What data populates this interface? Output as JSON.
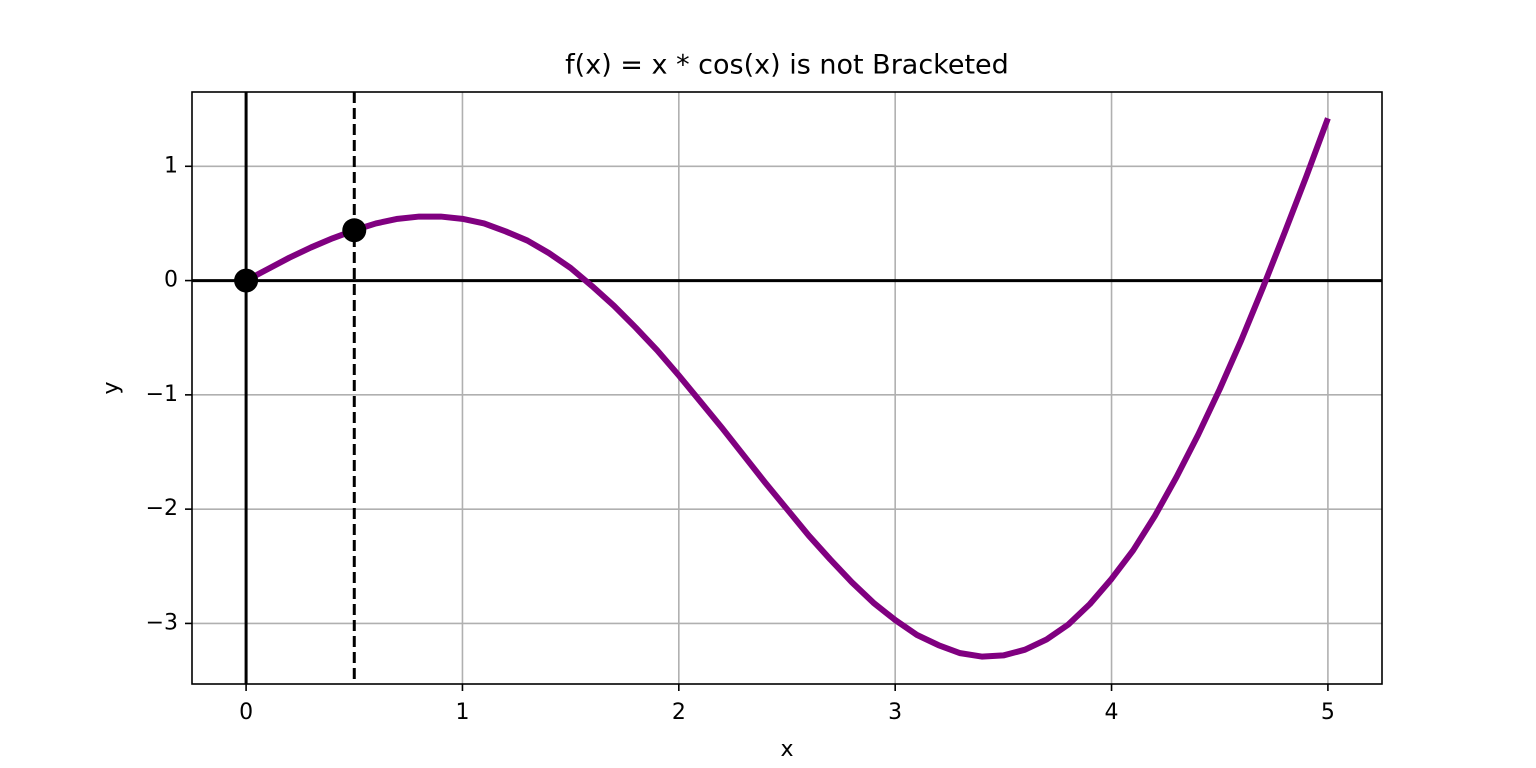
{
  "chart_data": {
    "type": "line",
    "title": "f(x) = x * cos(x) is not Bracketed",
    "xlabel": "x",
    "ylabel": "y",
    "x": [
      0,
      0.1,
      0.2,
      0.3,
      0.4,
      0.5,
      0.6,
      0.7,
      0.8,
      0.9,
      1.0,
      1.1,
      1.2,
      1.3,
      1.4,
      1.5,
      1.6,
      1.7,
      1.8,
      1.9,
      2.0,
      2.1,
      2.2,
      2.3,
      2.4,
      2.5,
      2.6,
      2.7,
      2.8,
      2.9,
      3.0,
      3.1,
      3.2,
      3.3,
      3.4,
      3.5,
      3.6,
      3.7,
      3.8,
      3.9,
      4.0,
      4.1,
      4.2,
      4.3,
      4.4,
      4.5,
      4.6,
      4.7,
      4.8,
      4.9,
      5.0
    ],
    "values": [
      0,
      0.1,
      0.2,
      0.29,
      0.37,
      0.44,
      0.5,
      0.54,
      0.56,
      0.56,
      0.54,
      0.5,
      0.43,
      0.35,
      0.24,
      0.11,
      -0.05,
      -0.22,
      -0.41,
      -0.61,
      -0.83,
      -1.06,
      -1.29,
      -1.53,
      -1.77,
      -2.0,
      -2.23,
      -2.44,
      -2.64,
      -2.82,
      -2.97,
      -3.1,
      -3.19,
      -3.26,
      -3.29,
      -3.28,
      -3.23,
      -3.14,
      -3.01,
      -2.83,
      -2.61,
      -2.36,
      -2.06,
      -1.72,
      -1.35,
      -0.95,
      -0.52,
      -0.06,
      0.42,
      0.91,
      1.42
    ],
    "color": "#800080",
    "points": {
      "x": [
        0,
        0.5
      ],
      "values": [
        0,
        0.44
      ],
      "color": "#000000"
    },
    "vlines": [
      {
        "x": 0,
        "dashed": false
      },
      {
        "x": 0.5,
        "dashed": true
      }
    ],
    "hlines": [
      0
    ],
    "xlim": [
      -0.25,
      5.25
    ],
    "ylim": [
      -3.53,
      1.65
    ],
    "xticks": [
      0,
      1,
      2,
      3,
      4,
      5
    ],
    "yticks": [
      {
        "value": -3,
        "label": "−3"
      },
      {
        "value": -2,
        "label": "−2"
      },
      {
        "value": -1,
        "label": "−1"
      },
      0,
      1
    ],
    "grid": true
  }
}
